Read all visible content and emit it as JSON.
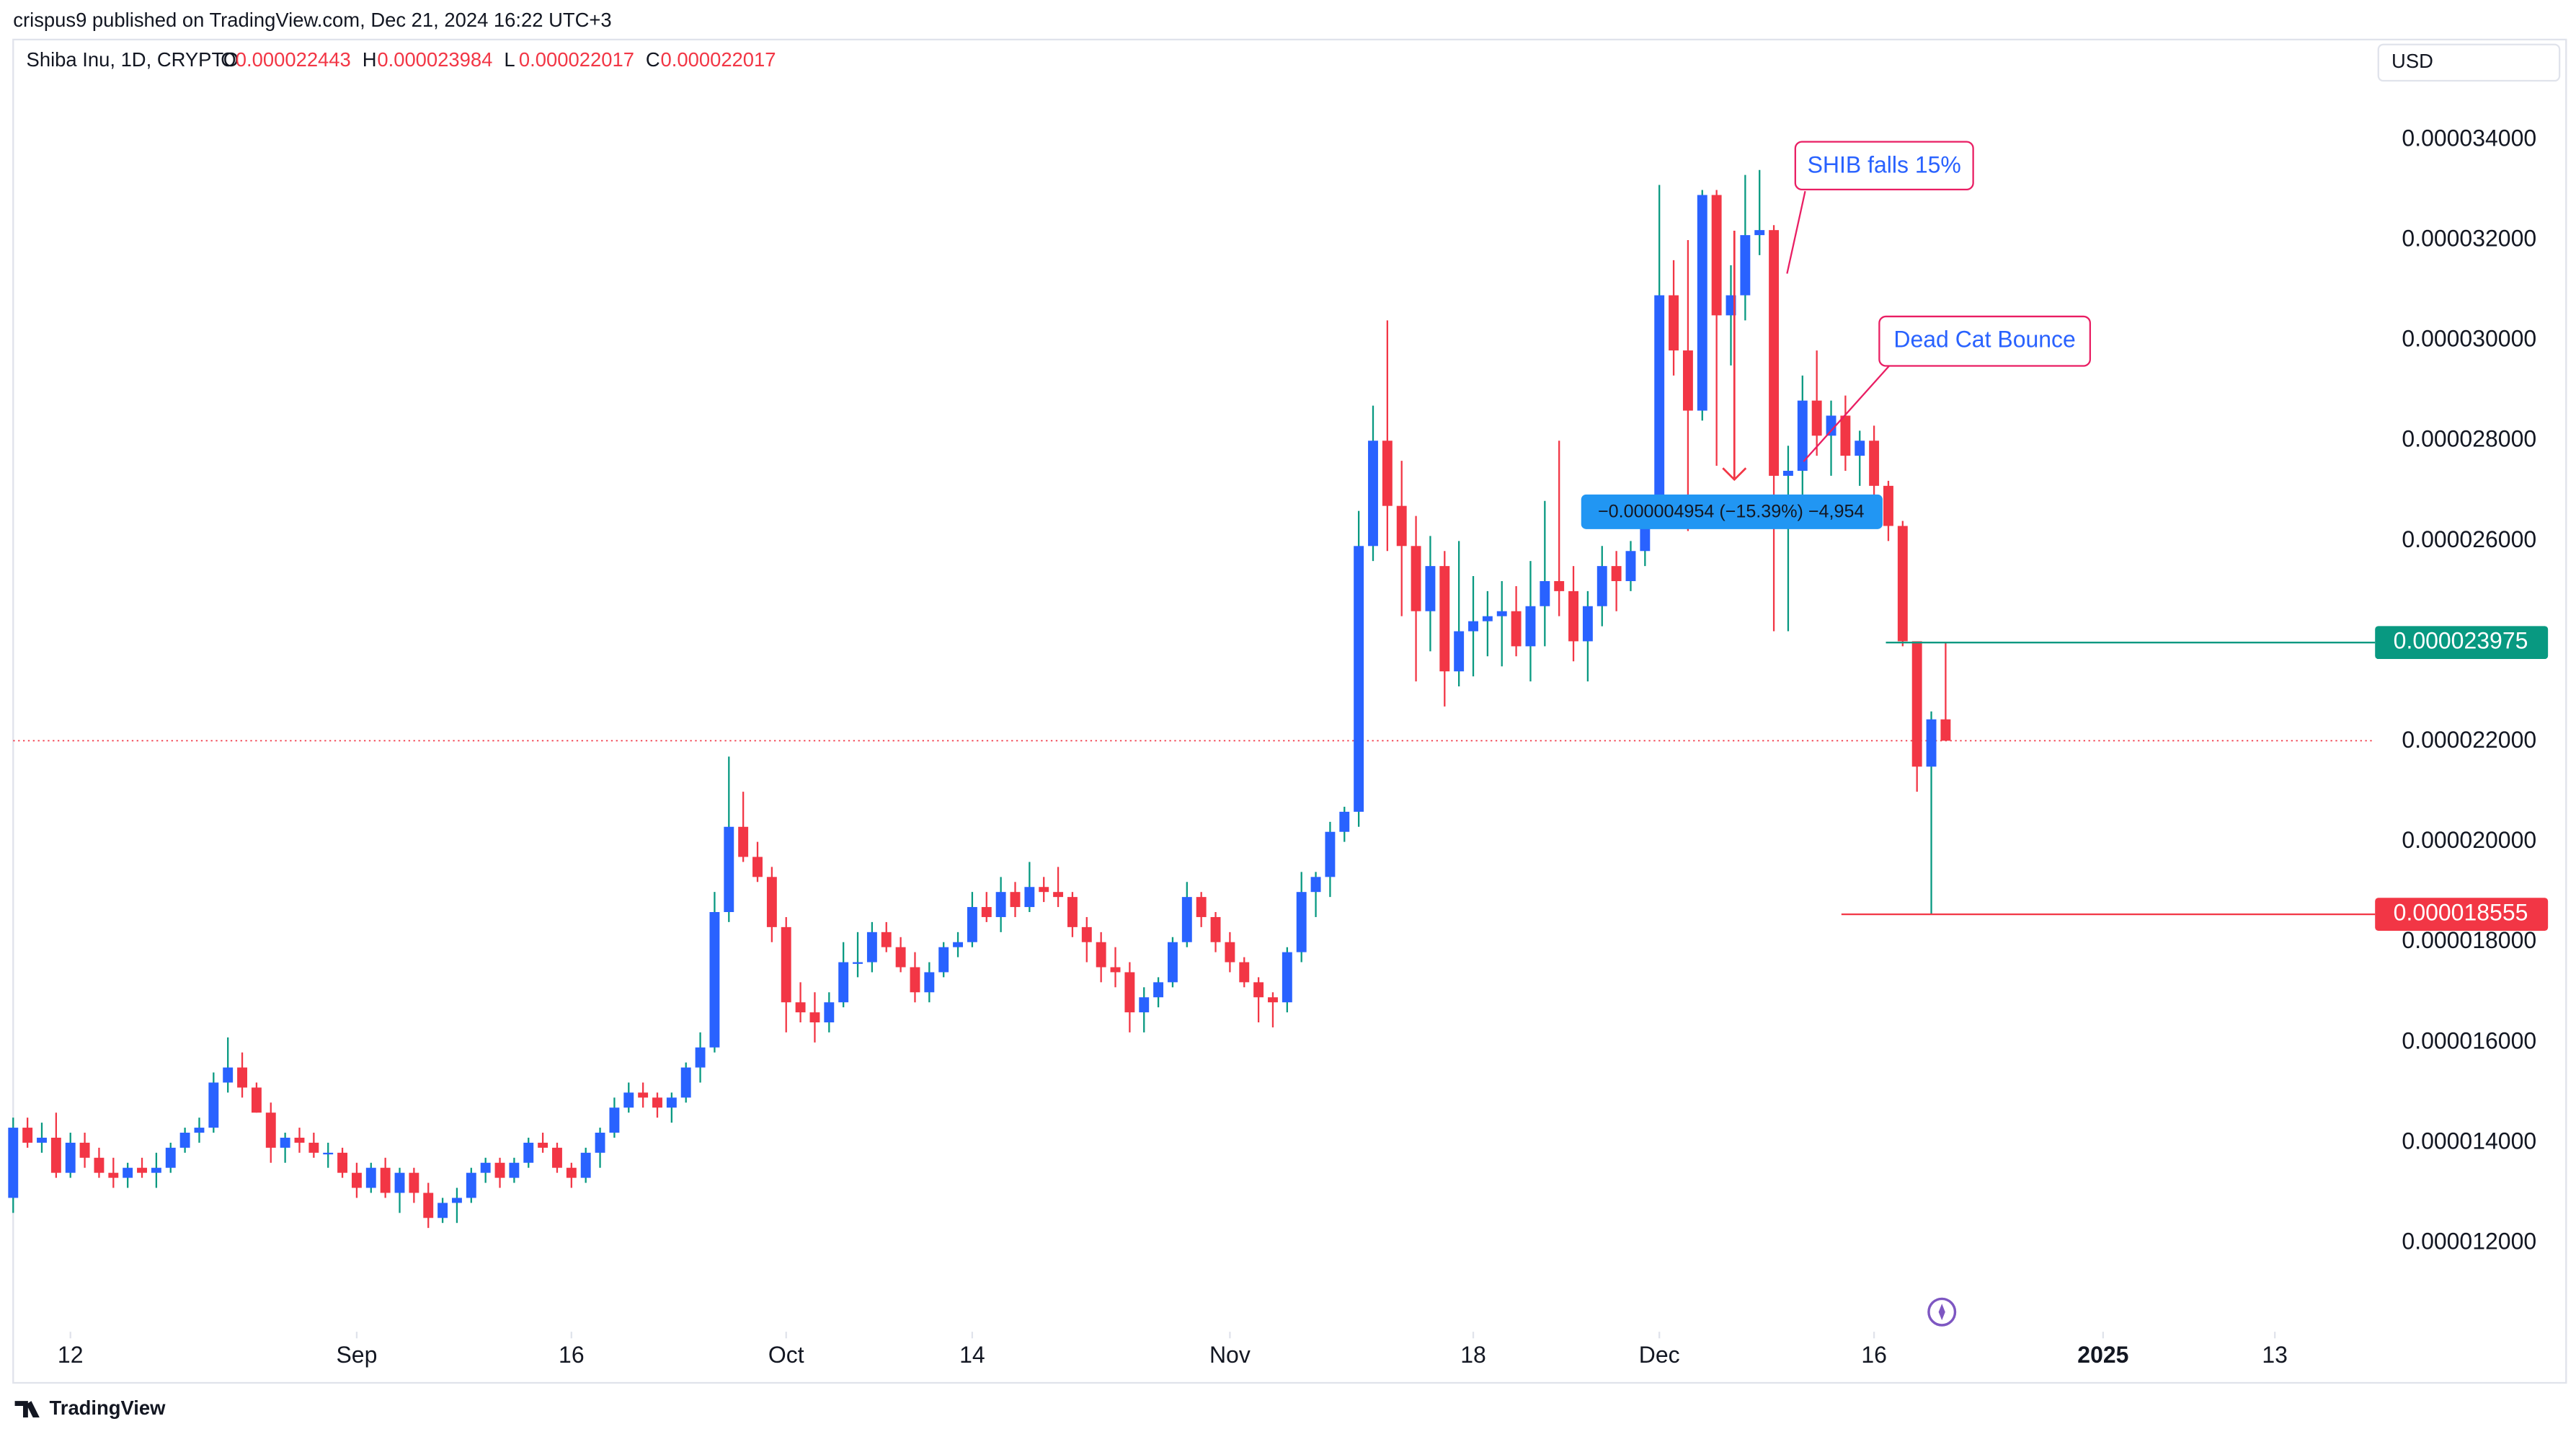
{
  "header": "crispus9 published on TradingView.com, Dec 21, 2024 16:22 UTC+3",
  "footer": "TradingView",
  "chart_data": {
    "type": "candlestick",
    "title": "Shiba Inu, 1D, CRYPTO",
    "currency": "USD",
    "ohlc_labels": [
      "O",
      "H",
      "L",
      "C"
    ],
    "up_color": "#2962ff",
    "down_color": "#f23645",
    "up_wick": "#089981",
    "down_wick": "#f23645",
    "grid": false,
    "x": [
      "2024-08-08",
      "2024-08-09",
      "2024-08-10",
      "2024-08-11",
      "2024-08-12",
      "2024-08-13",
      "2024-08-14",
      "2024-08-15",
      "2024-08-16",
      "2024-08-17",
      "2024-08-18",
      "2024-08-19",
      "2024-08-20",
      "2024-08-21",
      "2024-08-22",
      "2024-08-23",
      "2024-08-24",
      "2024-08-25",
      "2024-08-26",
      "2024-08-27",
      "2024-08-28",
      "2024-08-29",
      "2024-08-30",
      "2024-08-31",
      "2024-09-01",
      "2024-09-02",
      "2024-09-03",
      "2024-09-04",
      "2024-09-05",
      "2024-09-06",
      "2024-09-07",
      "2024-09-08",
      "2024-09-09",
      "2024-09-10",
      "2024-09-11",
      "2024-09-12",
      "2024-09-13",
      "2024-09-14",
      "2024-09-15",
      "2024-09-16",
      "2024-09-17",
      "2024-09-18",
      "2024-09-19",
      "2024-09-20",
      "2024-09-21",
      "2024-09-22",
      "2024-09-23",
      "2024-09-24",
      "2024-09-25",
      "2024-09-26",
      "2024-09-27",
      "2024-09-28",
      "2024-09-29",
      "2024-09-30",
      "2024-10-01",
      "2024-10-02",
      "2024-10-03",
      "2024-10-04",
      "2024-10-05",
      "2024-10-06",
      "2024-10-07",
      "2024-10-08",
      "2024-10-09",
      "2024-10-10",
      "2024-10-11",
      "2024-10-12",
      "2024-10-13",
      "2024-10-14",
      "2024-10-15",
      "2024-10-16",
      "2024-10-17",
      "2024-10-18",
      "2024-10-19",
      "2024-10-20",
      "2024-10-21",
      "2024-10-22",
      "2024-10-23",
      "2024-10-24",
      "2024-10-25",
      "2024-10-26",
      "2024-10-27",
      "2024-10-28",
      "2024-10-29",
      "2024-10-30",
      "2024-10-31",
      "2024-11-01",
      "2024-11-02",
      "2024-11-03",
      "2024-11-04",
      "2024-11-05",
      "2024-11-06",
      "2024-11-07",
      "2024-11-08",
      "2024-11-09",
      "2024-11-10",
      "2024-11-11",
      "2024-11-12",
      "2024-11-13",
      "2024-11-14",
      "2024-11-15",
      "2024-11-16",
      "2024-11-17",
      "2024-11-18",
      "2024-11-19",
      "2024-11-20",
      "2024-11-21",
      "2024-11-22",
      "2024-11-23",
      "2024-11-24",
      "2024-11-25",
      "2024-11-26",
      "2024-11-27",
      "2024-11-28",
      "2024-11-29",
      "2024-11-30",
      "2024-12-01",
      "2024-12-02",
      "2024-12-03",
      "2024-12-04",
      "2024-12-05",
      "2024-12-06",
      "2024-12-07",
      "2024-12-08",
      "2024-12-09",
      "2024-12-10",
      "2024-12-11",
      "2024-12-12",
      "2024-12-13",
      "2024-12-14",
      "2024-12-15",
      "2024-12-16",
      "2024-12-17",
      "2024-12-18",
      "2024-12-19",
      "2024-12-20",
      "2024-12-21"
    ],
    "open": [
      1.29e-05,
      1.43e-05,
      1.4e-05,
      1.41e-05,
      1.34e-05,
      1.4e-05,
      1.37e-05,
      1.34e-05,
      1.33e-05,
      1.35e-05,
      1.34e-05,
      1.35e-05,
      1.39e-05,
      1.42e-05,
      1.43e-05,
      1.52e-05,
      1.55e-05,
      1.51e-05,
      1.46e-05,
      1.39e-05,
      1.41e-05,
      1.4e-05,
      1.38e-05,
      1.38e-05,
      1.34e-05,
      1.31e-05,
      1.35e-05,
      1.3e-05,
      1.34e-05,
      1.3e-05,
      1.25e-05,
      1.28e-05,
      1.29e-05,
      1.34e-05,
      1.36e-05,
      1.33e-05,
      1.36e-05,
      1.4e-05,
      1.39e-05,
      1.35e-05,
      1.33e-05,
      1.38e-05,
      1.42e-05,
      1.47e-05,
      1.5e-05,
      1.49e-05,
      1.47e-05,
      1.49e-05,
      1.55e-05,
      1.59e-05,
      1.86e-05,
      2.03e-05,
      1.97e-05,
      1.93e-05,
      1.83e-05,
      1.68e-05,
      1.66e-05,
      1.64e-05,
      1.68e-05,
      1.76e-05,
      1.76e-05,
      1.82e-05,
      1.79e-05,
      1.75e-05,
      1.7e-05,
      1.74e-05,
      1.79e-05,
      1.8e-05,
      1.87e-05,
      1.85e-05,
      1.9e-05,
      1.87e-05,
      1.91e-05,
      1.9e-05,
      1.89e-05,
      1.83e-05,
      1.8e-05,
      1.75e-05,
      1.74e-05,
      1.66e-05,
      1.69e-05,
      1.72e-05,
      1.8e-05,
      1.89e-05,
      1.85e-05,
      1.8e-05,
      1.76e-05,
      1.72e-05,
      1.69e-05,
      1.68e-05,
      1.78e-05,
      1.9e-05,
      1.93e-05,
      2.02e-05,
      2.06e-05,
      2.59e-05,
      2.8e-05,
      2.67e-05,
      2.59e-05,
      2.46e-05,
      2.55e-05,
      2.34e-05,
      2.42e-05,
      2.44e-05,
      2.45e-05,
      2.46e-05,
      2.39e-05,
      2.47e-05,
      2.52e-05,
      2.5e-05,
      2.4e-05,
      2.47e-05,
      2.55e-05,
      2.52e-05,
      2.58e-05,
      2.64e-05,
      3.09e-05,
      2.98e-05,
      2.86e-05,
      3.29e-05,
      3.05e-05,
      3.09e-05,
      3.21e-05,
      3.22e-05,
      2.73e-05,
      2.74e-05,
      2.88e-05,
      2.81e-05,
      2.85e-05,
      2.77e-05,
      2.8e-05,
      2.71e-05,
      2.63e-05,
      2.4e-05,
      2.15e-05,
      2.2443e-05
    ],
    "high": [
      1.45e-05,
      1.45e-05,
      1.44e-05,
      1.46e-05,
      1.42e-05,
      1.42e-05,
      1.39e-05,
      1.37e-05,
      1.36e-05,
      1.37e-05,
      1.38e-05,
      1.4e-05,
      1.43e-05,
      1.45e-05,
      1.54e-05,
      1.61e-05,
      1.58e-05,
      1.52e-05,
      1.48e-05,
      1.42e-05,
      1.43e-05,
      1.42e-05,
      1.4e-05,
      1.39e-05,
      1.36e-05,
      1.36e-05,
      1.37e-05,
      1.35e-05,
      1.35e-05,
      1.32e-05,
      1.29e-05,
      1.31e-05,
      1.35e-05,
      1.37e-05,
      1.37e-05,
      1.37e-05,
      1.41e-05,
      1.42e-05,
      1.4e-05,
      1.36e-05,
      1.39e-05,
      1.43e-05,
      1.49e-05,
      1.52e-05,
      1.52e-05,
      1.5e-05,
      1.5e-05,
      1.56e-05,
      1.62e-05,
      1.9e-05,
      2.17e-05,
      2.1e-05,
      2e-05,
      1.95e-05,
      1.85e-05,
      1.72e-05,
      1.7e-05,
      1.7e-05,
      1.8e-05,
      1.82e-05,
      1.84e-05,
      1.84e-05,
      1.81e-05,
      1.78e-05,
      1.76e-05,
      1.8e-05,
      1.82e-05,
      1.9e-05,
      1.9e-05,
      1.93e-05,
      1.92e-05,
      1.96e-05,
      1.93e-05,
      1.95e-05,
      1.9e-05,
      1.85e-05,
      1.82e-05,
      1.79e-05,
      1.76e-05,
      1.71e-05,
      1.73e-05,
      1.81e-05,
      1.92e-05,
      1.9e-05,
      1.86e-05,
      1.82e-05,
      1.77e-05,
      1.73e-05,
      1.7e-05,
      1.79e-05,
      1.94e-05,
      1.94e-05,
      2.04e-05,
      2.07e-05,
      2.66e-05,
      2.87e-05,
      3.04e-05,
      2.76e-05,
      2.65e-05,
      2.61e-05,
      2.58e-05,
      2.6e-05,
      2.53e-05,
      2.5e-05,
      2.52e-05,
      2.51e-05,
      2.56e-05,
      2.68e-05,
      2.8e-05,
      2.55e-05,
      2.5e-05,
      2.59e-05,
      2.58e-05,
      2.6e-05,
      2.69e-05,
      3.31e-05,
      3.16e-05,
      3.2e-05,
      3.3e-05,
      3.3e-05,
      3.15e-05,
      3.33e-05,
      3.34e-05,
      3.23e-05,
      2.79e-05,
      2.93e-05,
      2.98e-05,
      2.88e-05,
      2.89e-05,
      2.82e-05,
      2.83e-05,
      2.72e-05,
      2.64e-05,
      2.4e-05,
      2.26e-05,
      2.3984e-05
    ],
    "low": [
      1.26e-05,
      1.39e-05,
      1.38e-05,
      1.33e-05,
      1.33e-05,
      1.35e-05,
      1.33e-05,
      1.31e-05,
      1.31e-05,
      1.33e-05,
      1.31e-05,
      1.34e-05,
      1.38e-05,
      1.4e-05,
      1.42e-05,
      1.5e-05,
      1.49e-05,
      1.46e-05,
      1.36e-05,
      1.36e-05,
      1.38e-05,
      1.37e-05,
      1.35e-05,
      1.33e-05,
      1.29e-05,
      1.3e-05,
      1.29e-05,
      1.26e-05,
      1.28e-05,
      1.23e-05,
      1.24e-05,
      1.24e-05,
      1.28e-05,
      1.32e-05,
      1.31e-05,
      1.32e-05,
      1.35e-05,
      1.38e-05,
      1.34e-05,
      1.31e-05,
      1.32e-05,
      1.35e-05,
      1.41e-05,
      1.46e-05,
      1.47e-05,
      1.45e-05,
      1.44e-05,
      1.48e-05,
      1.52e-05,
      1.58e-05,
      1.84e-05,
      1.96e-05,
      1.92e-05,
      1.8e-05,
      1.62e-05,
      1.64e-05,
      1.6e-05,
      1.62e-05,
      1.67e-05,
      1.73e-05,
      1.74e-05,
      1.78e-05,
      1.74e-05,
      1.68e-05,
      1.68e-05,
      1.73e-05,
      1.77e-05,
      1.79e-05,
      1.84e-05,
      1.82e-05,
      1.85e-05,
      1.86e-05,
      1.88e-05,
      1.87e-05,
      1.81e-05,
      1.76e-05,
      1.72e-05,
      1.71e-05,
      1.62e-05,
      1.62e-05,
      1.67e-05,
      1.71e-05,
      1.79e-05,
      1.83e-05,
      1.78e-05,
      1.74e-05,
      1.71e-05,
      1.64e-05,
      1.63e-05,
      1.66e-05,
      1.76e-05,
      1.85e-05,
      1.89e-05,
      2e-05,
      2.03e-05,
      2.56e-05,
      2.58e-05,
      2.45e-05,
      2.32e-05,
      2.38e-05,
      2.27e-05,
      2.31e-05,
      2.33e-05,
      2.37e-05,
      2.35e-05,
      2.37e-05,
      2.32e-05,
      2.39e-05,
      2.45e-05,
      2.36e-05,
      2.32e-05,
      2.43e-05,
      2.46e-05,
      2.5e-05,
      2.55e-05,
      2.63e-05,
      2.93e-05,
      2.62e-05,
      2.84e-05,
      2.75e-05,
      2.95e-05,
      3.04e-05,
      3.17e-05,
      2.42e-05,
      2.42e-05,
      2.66e-05,
      2.77e-05,
      2.73e-05,
      2.74e-05,
      2.71e-05,
      2.67e-05,
      2.6e-05,
      2.39e-05,
      2.1e-05,
      1.8555e-05,
      2.2017e-05
    ],
    "close": [
      1.43e-05,
      1.4e-05,
      1.41e-05,
      1.34e-05,
      1.4e-05,
      1.37e-05,
      1.34e-05,
      1.33e-05,
      1.35e-05,
      1.34e-05,
      1.35e-05,
      1.39e-05,
      1.42e-05,
      1.43e-05,
      1.52e-05,
      1.55e-05,
      1.51e-05,
      1.46e-05,
      1.39e-05,
      1.41e-05,
      1.4e-05,
      1.38e-05,
      1.38e-05,
      1.34e-05,
      1.31e-05,
      1.35e-05,
      1.3e-05,
      1.34e-05,
      1.3e-05,
      1.25e-05,
      1.28e-05,
      1.29e-05,
      1.34e-05,
      1.36e-05,
      1.33e-05,
      1.36e-05,
      1.4e-05,
      1.39e-05,
      1.35e-05,
      1.33e-05,
      1.38e-05,
      1.42e-05,
      1.47e-05,
      1.5e-05,
      1.49e-05,
      1.47e-05,
      1.49e-05,
      1.55e-05,
      1.59e-05,
      1.86e-05,
      2.03e-05,
      1.97e-05,
      1.93e-05,
      1.83e-05,
      1.68e-05,
      1.66e-05,
      1.64e-05,
      1.68e-05,
      1.76e-05,
      1.76e-05,
      1.82e-05,
      1.79e-05,
      1.75e-05,
      1.7e-05,
      1.74e-05,
      1.79e-05,
      1.8e-05,
      1.87e-05,
      1.85e-05,
      1.9e-05,
      1.87e-05,
      1.91e-05,
      1.9e-05,
      1.89e-05,
      1.83e-05,
      1.8e-05,
      1.75e-05,
      1.74e-05,
      1.66e-05,
      1.69e-05,
      1.72e-05,
      1.8e-05,
      1.89e-05,
      1.85e-05,
      1.8e-05,
      1.76e-05,
      1.72e-05,
      1.69e-05,
      1.68e-05,
      1.78e-05,
      1.9e-05,
      1.93e-05,
      2.02e-05,
      2.06e-05,
      2.59e-05,
      2.8e-05,
      2.67e-05,
      2.59e-05,
      2.46e-05,
      2.55e-05,
      2.34e-05,
      2.42e-05,
      2.44e-05,
      2.45e-05,
      2.46e-05,
      2.39e-05,
      2.47e-05,
      2.52e-05,
      2.5e-05,
      2.4e-05,
      2.47e-05,
      2.55e-05,
      2.52e-05,
      2.58e-05,
      2.64e-05,
      3.09e-05,
      2.98e-05,
      2.86e-05,
      3.29e-05,
      3.05e-05,
      3.09e-05,
      3.21e-05,
      3.22e-05,
      2.73e-05,
      2.74e-05,
      2.88e-05,
      2.81e-05,
      2.85e-05,
      2.77e-05,
      2.8e-05,
      2.71e-05,
      2.63e-05,
      2.4e-05,
      2.15e-05,
      2.2443e-05,
      2.2017e-05
    ],
    "xlim": [
      "2024-08-08",
      "2025-01-20"
    ],
    "xticks": [
      {
        "value": "2024-08-12",
        "label": "12"
      },
      {
        "value": "2024-09-01",
        "label": "Sep"
      },
      {
        "value": "2024-09-16",
        "label": "16"
      },
      {
        "value": "2024-10-01",
        "label": "Oct"
      },
      {
        "value": "2024-10-14",
        "label": "14"
      },
      {
        "value": "2024-11-01",
        "label": "Nov"
      },
      {
        "value": "2024-11-18",
        "label": "18"
      },
      {
        "value": "2024-12-01",
        "label": "Dec"
      },
      {
        "value": "2024-12-16",
        "label": "16"
      },
      {
        "value": "2025-01-01",
        "label": "2025"
      },
      {
        "value": "2025-01-13",
        "label": "13"
      }
    ],
    "ylim": [
      1.023e-05,
      3.6e-05
    ],
    "yticks": [
      {
        "value": 1.2e-05,
        "label": "0.000012000"
      },
      {
        "value": 1.4e-05,
        "label": "0.000014000"
      },
      {
        "value": 1.6e-05,
        "label": "0.000016000"
      },
      {
        "value": 1.8e-05,
        "label": "0.000018000"
      },
      {
        "value": 2e-05,
        "label": "0.000020000"
      },
      {
        "value": 2.2e-05,
        "label": "0.000022000"
      },
      {
        "value": 2.6e-05,
        "label": "0.000026000"
      },
      {
        "value": 2.8e-05,
        "label": "0.000028000"
      },
      {
        "value": 3e-05,
        "label": "0.000030000"
      },
      {
        "value": 3.2e-05,
        "label": "0.000032000"
      },
      {
        "value": 3.4e-05,
        "label": "0.000034000"
      }
    ],
    "price_lines": [
      {
        "value": 2.3975e-05,
        "color": "#089981"
      },
      {
        "value": 1.8555e-05,
        "color": "#f23645"
      }
    ],
    "annotations": [
      "SHIB falls 15%",
      "Dead Cat Bounce"
    ],
    "measure": "−0.000004954 (−15.39%) −4,954"
  }
}
